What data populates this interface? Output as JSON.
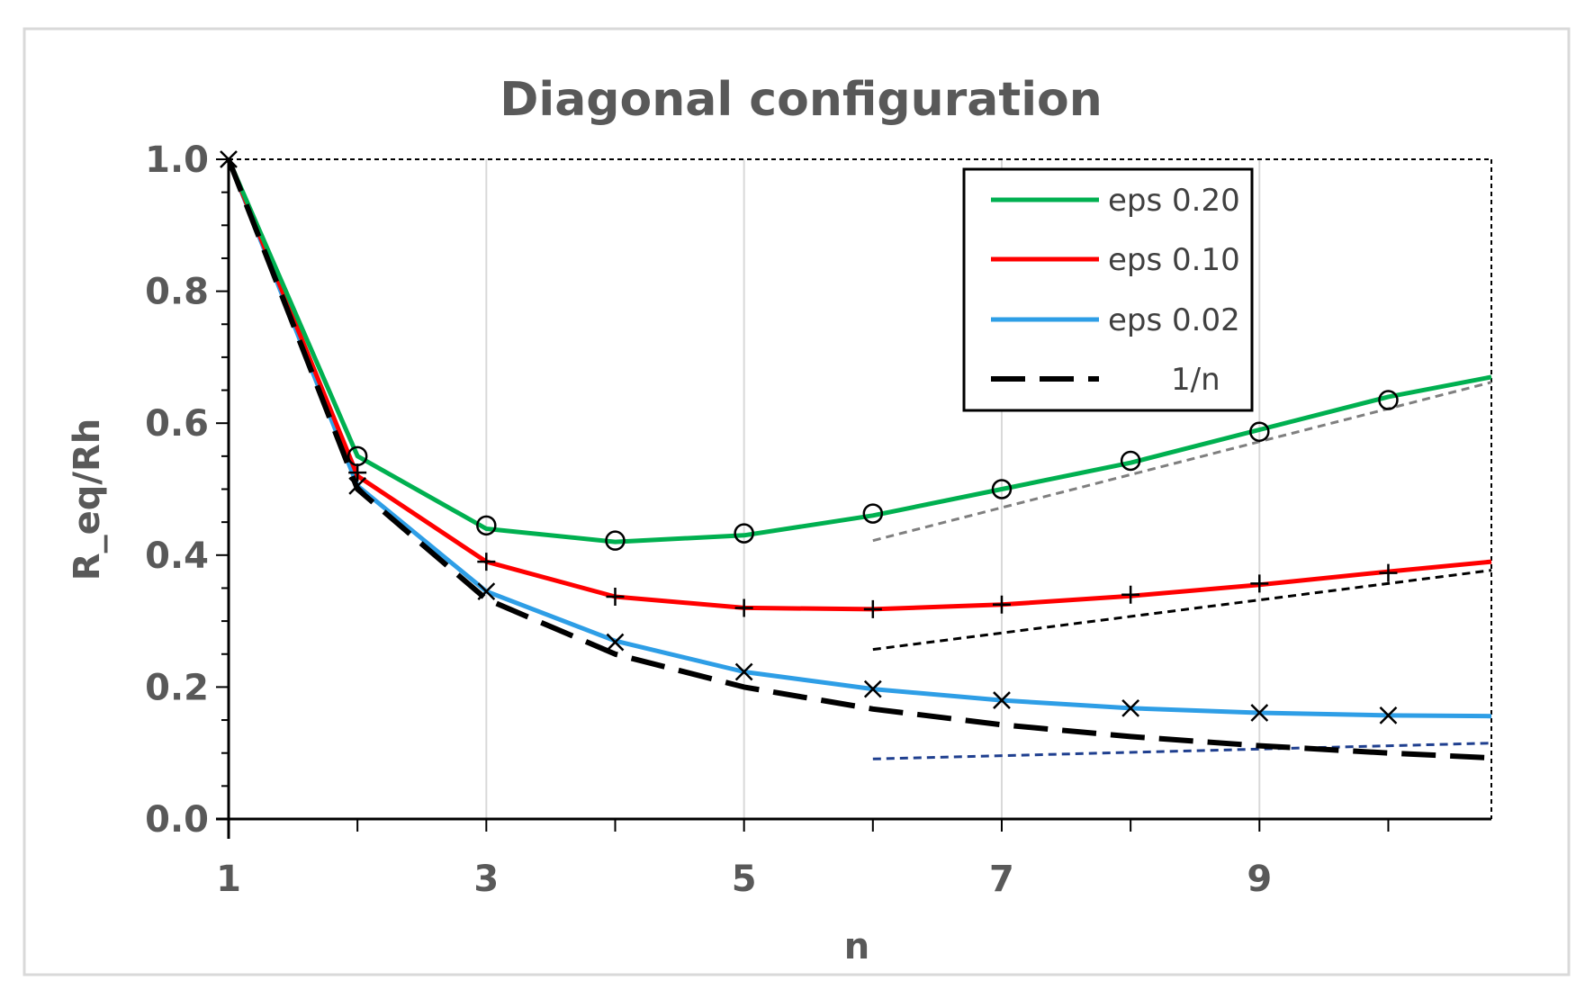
{
  "chart_data": {
    "type": "line",
    "title": "Diagonal configuration",
    "xlabel": "n",
    "ylabel": "R_eq/Rh",
    "xlim": [
      1,
      10.8
    ],
    "ylim": [
      0,
      1.0
    ],
    "x_ticks": [
      1,
      3,
      5,
      7,
      9
    ],
    "y_ticks": [
      0.0,
      0.2,
      0.4,
      0.6,
      0.8,
      1.0
    ],
    "y_tick_labels": [
      "0.0",
      "0.2",
      "0.4",
      "0.6",
      "0.8",
      "1.0"
    ],
    "x_tick_labels": [
      "1",
      "3",
      "5",
      "7",
      "9"
    ],
    "grid": "vertical",
    "legend_position": "top-right",
    "series": [
      {
        "name": "eps 0.20",
        "color": "#00b050",
        "style": "solid",
        "marker": "circle",
        "x": [
          1,
          2,
          3,
          4,
          5,
          6,
          7,
          8,
          9,
          10,
          10.8
        ],
        "y": [
          1.0,
          0.55,
          0.44,
          0.42,
          0.43,
          0.46,
          0.5,
          0.54,
          0.59,
          0.64,
          0.67
        ],
        "marker_x": [
          2,
          3,
          4,
          5,
          6,
          7,
          8,
          9,
          10
        ],
        "marker_y": [
          0.55,
          0.445,
          0.422,
          0.433,
          0.463,
          0.5,
          0.543,
          0.587,
          0.635
        ]
      },
      {
        "name": "eps 0.10",
        "color": "#ff0000",
        "style": "solid",
        "marker": "plus",
        "x": [
          1,
          2,
          3,
          4,
          5,
          6,
          7,
          8,
          9,
          10,
          10.8
        ],
        "y": [
          1.0,
          0.52,
          0.39,
          0.337,
          0.32,
          0.318,
          0.325,
          0.338,
          0.355,
          0.375,
          0.39
        ],
        "marker_x": [
          2,
          3,
          4,
          5,
          6,
          7,
          8,
          9,
          10
        ],
        "marker_y": [
          0.525,
          0.39,
          0.337,
          0.32,
          0.318,
          0.325,
          0.34,
          0.357,
          0.373
        ]
      },
      {
        "name": "eps 0.02",
        "color": "#2e9ee6",
        "style": "solid",
        "marker": "x",
        "x": [
          1,
          2,
          3,
          4,
          5,
          6,
          7,
          8,
          9,
          10,
          10.8
        ],
        "y": [
          1.0,
          0.505,
          0.345,
          0.27,
          0.223,
          0.197,
          0.18,
          0.168,
          0.161,
          0.157,
          0.156
        ],
        "marker_x": [
          1,
          2,
          3,
          4,
          5,
          6,
          7,
          8,
          9,
          10
        ],
        "marker_y": [
          1.0,
          0.505,
          0.345,
          0.268,
          0.223,
          0.197,
          0.18,
          0.168,
          0.161,
          0.157
        ]
      },
      {
        "name": "1/n",
        "color": "#000000",
        "style": "dashed",
        "marker": "none",
        "x": [
          1,
          2,
          3,
          4,
          5,
          6,
          7,
          8,
          9,
          10,
          10.8
        ],
        "y": [
          1.0,
          0.5,
          0.3333,
          0.25,
          0.2,
          0.1667,
          0.1429,
          0.125,
          0.1111,
          0.1,
          0.0926
        ]
      }
    ],
    "asymptotes": [
      {
        "color": "#7f7f7f",
        "x": [
          6,
          10.8
        ],
        "y": [
          0.422,
          0.662
        ]
      },
      {
        "color": "#000000",
        "x": [
          6,
          10.8
        ],
        "y": [
          0.257,
          0.377
        ]
      },
      {
        "color": "#1f3f8f",
        "x": [
          6,
          10.8
        ],
        "y": [
          0.091,
          0.115
        ]
      }
    ]
  }
}
